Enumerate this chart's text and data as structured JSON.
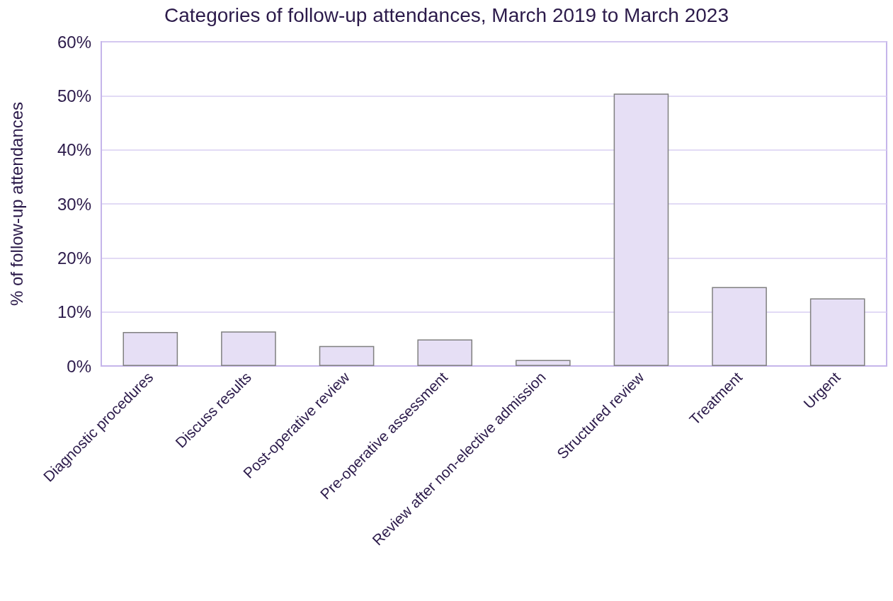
{
  "chart_data": {
    "type": "bar",
    "title": "Categories of follow-up attendances, March 2019 to March 2023",
    "ylabel": "% of follow-up attendances",
    "categories": [
      "Diagnostic procedures",
      "Discuss results",
      "Post-operative review",
      "Pre-operative assessment",
      "Review after non-elective admission",
      "Structured review",
      "Treatment",
      "Urgent"
    ],
    "values": [
      6.3,
      6.4,
      3.7,
      4.9,
      1.1,
      50.4,
      14.6,
      12.5
    ],
    "color": "#e6dff5",
    "ylim": [
      0,
      60
    ],
    "yticks": [
      {
        "value": 0,
        "label": "0%"
      },
      {
        "value": 10,
        "label": "10%"
      },
      {
        "value": 20,
        "label": "20%"
      },
      {
        "value": 30,
        "label": "30%"
      },
      {
        "value": 40,
        "label": "40%"
      },
      {
        "value": 50,
        "label": "50%"
      },
      {
        "value": 60,
        "label": "60%"
      }
    ],
    "grid": "y"
  }
}
